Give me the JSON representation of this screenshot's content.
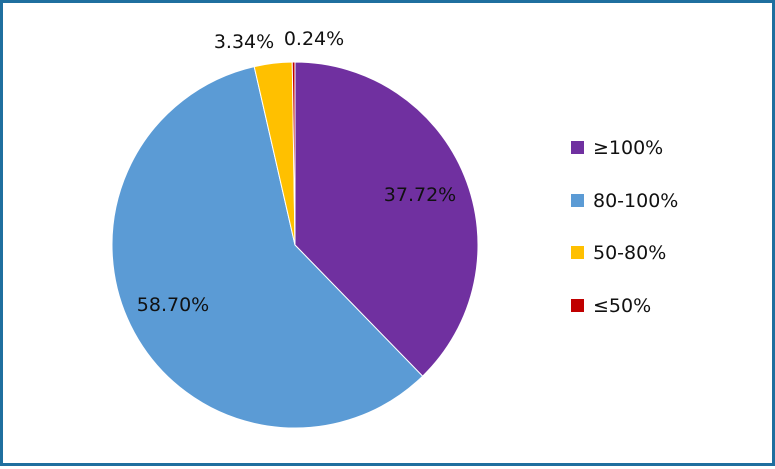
{
  "chart_data": {
    "type": "pie",
    "title": "",
    "categories": [
      "≥100%",
      "80-100%",
      "50-80%",
      "≤50%"
    ],
    "values": [
      37.72,
      58.7,
      3.34,
      0.24
    ],
    "data_labels": [
      "37.72%",
      "58.70%",
      "3.34%",
      "0.24%"
    ],
    "colors": [
      "#7030a0",
      "#5b9bd5",
      "#ffc000",
      "#c00000"
    ],
    "start_angle": "12 o'clock",
    "direction": "clockwise",
    "legend": {
      "position": "right",
      "entries": [
        "≥100%",
        "80-100%",
        "50-80%",
        "≤50%"
      ]
    }
  }
}
